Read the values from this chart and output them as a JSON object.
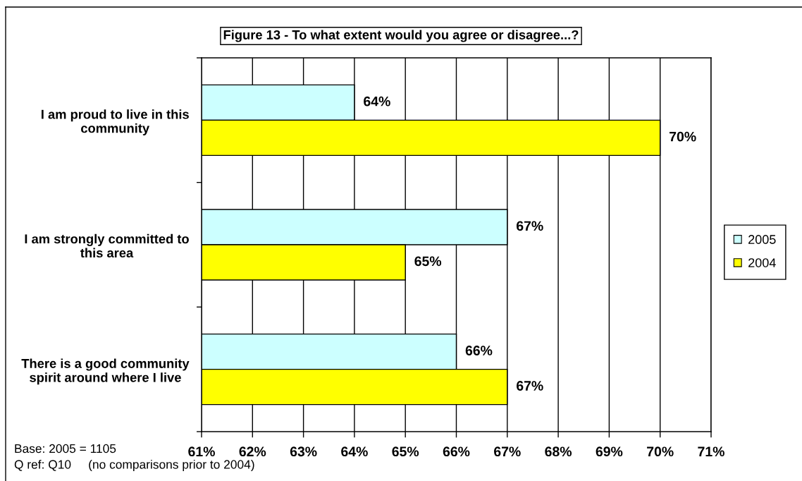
{
  "chart_data": {
    "type": "bar",
    "orientation": "horizontal",
    "title": "Figure 13 - To what extent would you agree or disagree...?",
    "categories": [
      "I am proud to live in this community",
      "I am strongly committed to this area",
      "There is a good community spirit around where I live"
    ],
    "series": [
      {
        "name": "2005",
        "color": "#ccffff",
        "values": [
          64,
          67,
          66
        ],
        "value_labels": [
          "64%",
          "67%",
          "66%"
        ]
      },
      {
        "name": "2004",
        "color": "#ffff00",
        "values": [
          70,
          65,
          67
        ],
        "value_labels": [
          "70%",
          "65%",
          "67%"
        ]
      }
    ],
    "xlim": [
      61,
      71
    ],
    "xticks": [
      {
        "value": 61,
        "label": "61%"
      },
      {
        "value": 62,
        "label": "62%"
      },
      {
        "value": 63,
        "label": "63%"
      },
      {
        "value": 64,
        "label": "64%"
      },
      {
        "value": 65,
        "label": "65%"
      },
      {
        "value": 66,
        "label": "66%"
      },
      {
        "value": 67,
        "label": "67%"
      },
      {
        "value": 68,
        "label": "68%"
      },
      {
        "value": 69,
        "label": "69%"
      },
      {
        "value": 70,
        "label": "70%"
      },
      {
        "value": 71,
        "label": "71%"
      }
    ],
    "grid": "x",
    "legend": "right",
    "annotations": [
      "Base: 2005 = 1105",
      "Q ref: Q10     (no comparisons prior to 2004)"
    ]
  }
}
